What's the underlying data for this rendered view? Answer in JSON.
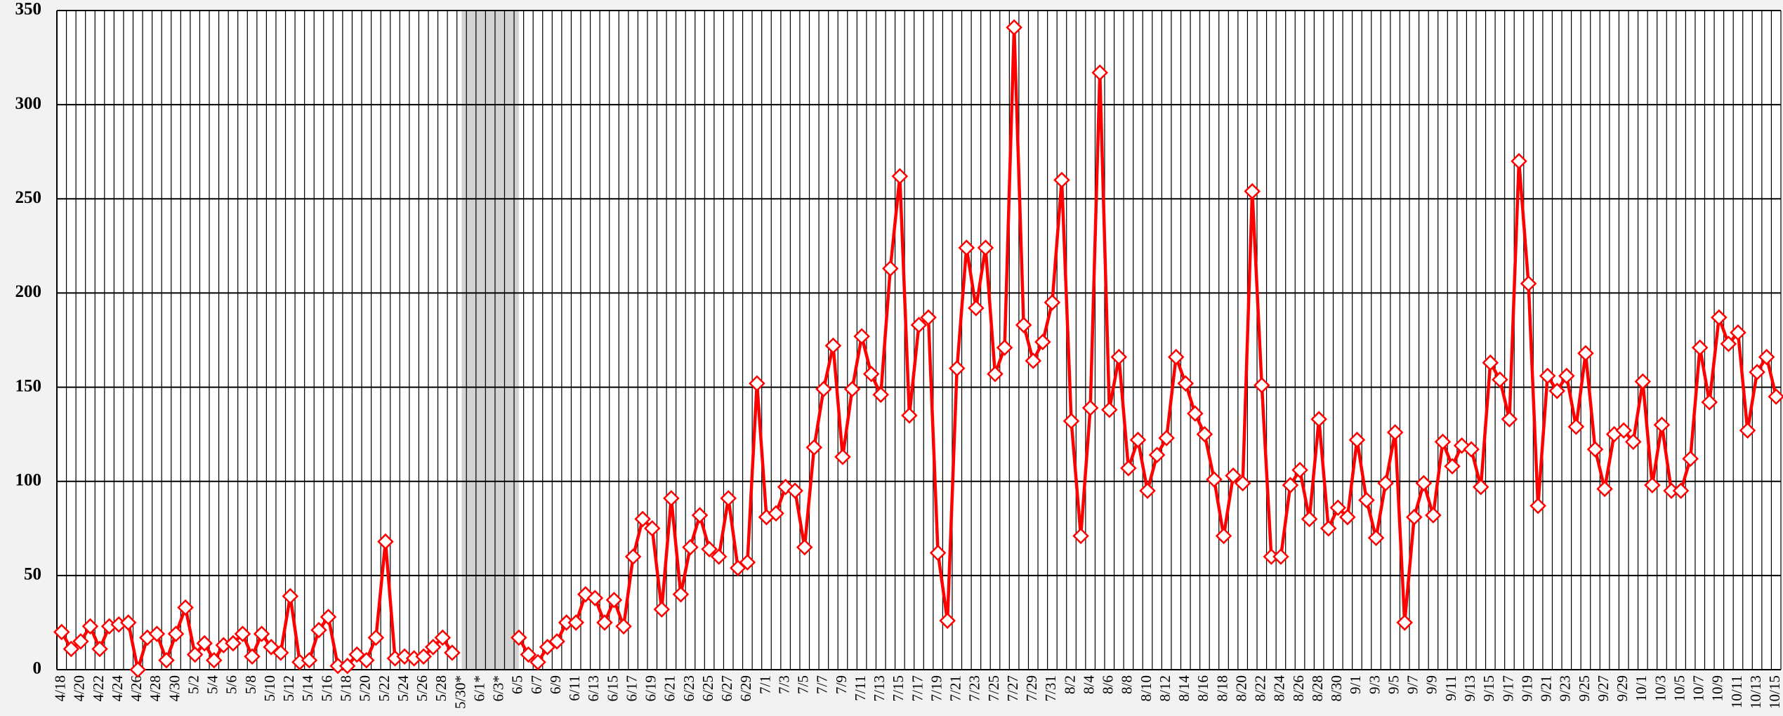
{
  "chart_data": {
    "type": "line",
    "categories": [
      "4/18",
      null,
      "4/20",
      null,
      "4/22",
      null,
      "4/24",
      null,
      "4/26",
      null,
      "4/28",
      null,
      "4/30",
      null,
      "5/2",
      null,
      "5/4",
      null,
      "5/6",
      null,
      "5/8",
      null,
      "5/10",
      null,
      "5/12",
      null,
      "5/14",
      null,
      "5/16",
      null,
      "5/18",
      null,
      "5/20",
      null,
      "5/22",
      null,
      "5/24",
      null,
      "5/26",
      null,
      "5/28",
      null,
      "5/30*",
      null,
      "6/1*",
      null,
      "6/3*",
      null,
      "6/5",
      null,
      "6/7",
      null,
      "6/9",
      null,
      "6/11",
      null,
      "6/13",
      null,
      "6/15",
      null,
      "6/17",
      null,
      "6/19",
      null,
      "6/21",
      null,
      "6/23",
      null,
      "6/25",
      null,
      "6/27",
      null,
      "6/29",
      null,
      "7/1",
      null,
      "7/3",
      null,
      "7/5",
      null,
      "7/7",
      null,
      "7/9",
      null,
      "7/11",
      null,
      "7/13",
      null,
      "7/15",
      null,
      "7/17",
      null,
      "7/19",
      null,
      "7/21",
      null,
      "7/23",
      null,
      "7/25",
      null,
      "7/27",
      null,
      "7/29",
      null,
      "7/31",
      null,
      "8/2",
      null,
      "8/4",
      null,
      "8/6",
      null,
      "8/8",
      null,
      "8/10",
      null,
      "8/12",
      null,
      "8/14",
      null,
      "8/16",
      null,
      "8/18",
      null,
      "8/20",
      null,
      "8/22",
      null,
      "8/24",
      null,
      "8/26",
      null,
      "8/28",
      null,
      "8/30",
      null,
      "9/1",
      null,
      "9/3",
      null,
      "9/5",
      null,
      "9/7",
      null,
      "9/9",
      null,
      "9/11",
      null,
      "9/13",
      null,
      "9/15",
      null,
      "9/17",
      null,
      "9/19",
      null,
      "9/21",
      null,
      "9/23",
      null,
      "9/25",
      null,
      "9/27",
      null,
      "9/29",
      null,
      "10/1",
      null,
      "10/3",
      null,
      "10/5",
      null,
      "10/7",
      null,
      "10/9",
      null,
      "10/11",
      null,
      "10/13",
      null,
      "10/15"
    ],
    "series": [
      {
        "color": "#ff0000",
        "values": [
          20,
          11,
          15,
          23,
          11,
          23,
          24,
          25,
          0,
          17,
          19,
          5,
          19,
          33,
          8,
          14,
          5,
          13,
          14,
          19,
          7,
          19,
          12,
          9,
          39,
          4,
          5,
          21,
          28,
          2,
          2,
          8,
          5,
          17,
          68,
          6,
          7,
          6,
          7,
          12,
          17,
          9,
          null,
          null,
          null,
          null,
          null,
          null,
          17,
          8,
          4,
          12,
          15,
          25,
          25,
          40,
          38,
          25,
          37,
          23,
          60,
          80,
          75,
          32,
          91,
          40,
          65,
          82,
          64,
          60,
          91,
          54,
          57,
          152,
          81,
          83,
          97,
          95,
          65,
          118,
          149,
          172,
          113,
          149,
          177,
          157,
          146,
          213,
          262,
          135,
          183,
          187,
          62,
          26,
          160,
          224,
          192,
          224,
          157,
          171,
          341,
          183,
          164,
          174,
          195,
          260,
          132,
          71,
          139,
          317,
          138,
          166,
          107,
          122,
          95,
          114,
          123,
          166,
          152,
          136,
          125,
          101,
          71,
          103,
          99,
          254,
          151,
          60,
          60,
          98,
          106,
          80,
          133,
          75,
          86,
          81,
          122,
          90,
          70,
          99,
          126,
          25,
          81,
          99,
          82,
          121,
          108,
          119,
          117,
          97,
          163,
          154,
          133,
          270,
          205,
          87,
          156,
          148,
          156,
          129,
          168,
          117,
          96,
          125,
          127,
          121,
          153,
          98,
          130,
          95,
          95,
          112,
          171,
          142,
          187,
          173,
          179,
          127,
          158,
          166,
          145
        ]
      }
    ],
    "ylim": [
      0,
      350
    ],
    "yticks": [
      0,
      50,
      100,
      150,
      200,
      250,
      300,
      350
    ],
    "grid": true
  }
}
